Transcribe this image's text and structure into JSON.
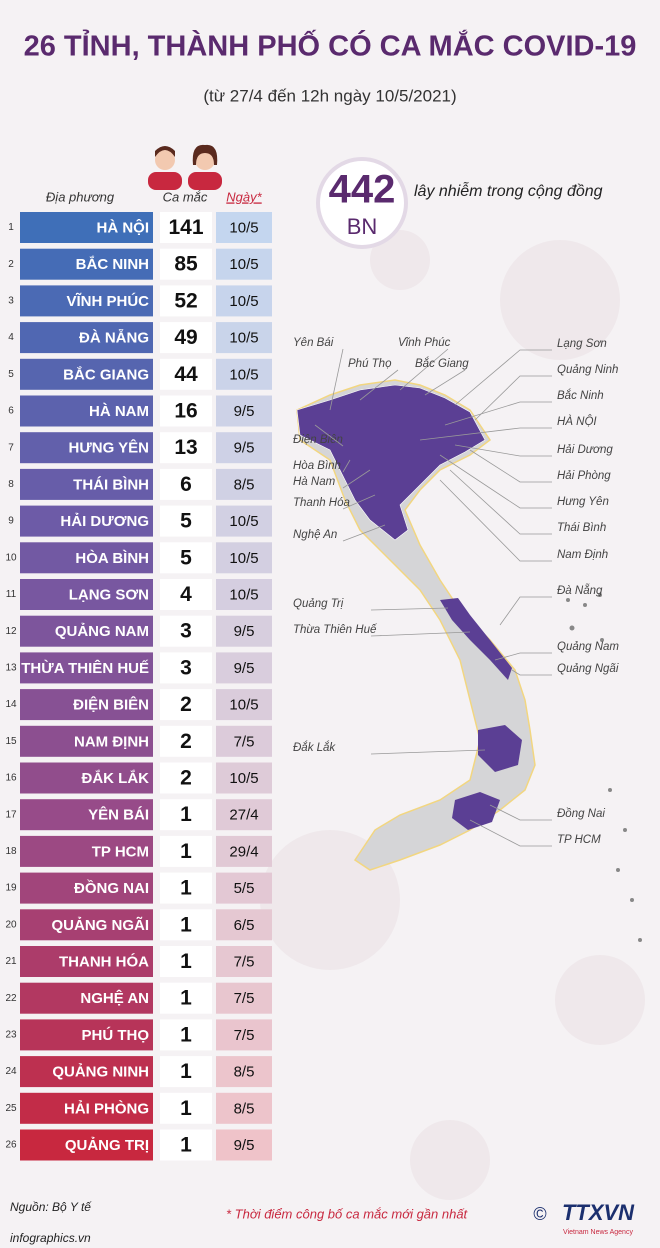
{
  "header": {
    "title": "26 TỈNH, THÀNH PHỐ CÓ CA MẮC COVID-19",
    "subtitle": "(từ 27/4 đến 12h ngày 10/5/2021)"
  },
  "table": {
    "columns": [
      "Địa phương",
      "Ca mắc",
      "Ngày*"
    ],
    "rows": [
      {
        "rank": 1,
        "province": "HÀ NỘI",
        "cases": 141,
        "date": "10/5"
      },
      {
        "rank": 2,
        "province": "BẮC NINH",
        "cases": 85,
        "date": "10/5"
      },
      {
        "rank": 3,
        "province": "VĨNH PHÚC",
        "cases": 52,
        "date": "10/5"
      },
      {
        "rank": 4,
        "province": "ĐÀ NẴNG",
        "cases": 49,
        "date": "10/5"
      },
      {
        "rank": 5,
        "province": "BẮC GIANG",
        "cases": 44,
        "date": "10/5"
      },
      {
        "rank": 6,
        "province": "HÀ NAM",
        "cases": 16,
        "date": "9/5"
      },
      {
        "rank": 7,
        "province": "HƯNG YÊN",
        "cases": 13,
        "date": "9/5"
      },
      {
        "rank": 8,
        "province": "THÁI BÌNH",
        "cases": 6,
        "date": "8/5"
      },
      {
        "rank": 9,
        "province": "HẢI DƯƠNG",
        "cases": 5,
        "date": "10/5"
      },
      {
        "rank": 10,
        "province": "HÒA BÌNH",
        "cases": 5,
        "date": "10/5"
      },
      {
        "rank": 11,
        "province": "LẠNG SƠN",
        "cases": 4,
        "date": "10/5"
      },
      {
        "rank": 12,
        "province": "QUẢNG NAM",
        "cases": 3,
        "date": "9/5"
      },
      {
        "rank": 13,
        "province": "THỪA THIÊN HUẾ",
        "cases": 3,
        "date": "9/5"
      },
      {
        "rank": 14,
        "province": "ĐIỆN BIÊN",
        "cases": 2,
        "date": "10/5"
      },
      {
        "rank": 15,
        "province": "NAM ĐỊNH",
        "cases": 2,
        "date": "7/5"
      },
      {
        "rank": 16,
        "province": "ĐẮK LẮK",
        "cases": 2,
        "date": "10/5"
      },
      {
        "rank": 17,
        "province": "YÊN BÁI",
        "cases": 1,
        "date": "27/4"
      },
      {
        "rank": 18,
        "province": "TP HCM",
        "cases": 1,
        "date": "29/4"
      },
      {
        "rank": 19,
        "province": "ĐỒNG NAI",
        "cases": 1,
        "date": "5/5"
      },
      {
        "rank": 20,
        "province": "QUẢNG NGÃI",
        "cases": 1,
        "date": "6/5"
      },
      {
        "rank": 21,
        "province": "THANH HÓA",
        "cases": 1,
        "date": "7/5"
      },
      {
        "rank": 22,
        "province": "NGHỆ AN",
        "cases": 1,
        "date": "7/5"
      },
      {
        "rank": 23,
        "province": "PHÚ THỌ",
        "cases": 1,
        "date": "7/5"
      },
      {
        "rank": 24,
        "province": "QUẢNG NINH",
        "cases": 1,
        "date": "8/5"
      },
      {
        "rank": 25,
        "province": "HẢI PHÒNG",
        "cases": 1,
        "date": "8/5"
      },
      {
        "rank": 26,
        "province": "QUẢNG TRỊ",
        "cases": 1,
        "date": "9/5"
      }
    ]
  },
  "summary": {
    "total": "442",
    "unit": "BN",
    "caption": "lây nhiễm trong cộng đồng"
  },
  "map": {
    "labels_left": [
      "Yên Bái",
      "Phú Thọ",
      "Vĩnh Phúc",
      "Bắc Giang",
      "Điện Biên",
      "Hòa Bình",
      "Hà Nam",
      "Thanh Hóa",
      "Nghệ An",
      "Quảng Trị",
      "Thừa Thiên Huế",
      "Đắk Lắk"
    ],
    "labels_right": [
      "Lạng Sơn",
      "Quảng Ninh",
      "Bắc Ninh",
      "HÀ NỘI",
      "Hải Dương",
      "Hải Phòng",
      "Hưng Yên",
      "Thái Bình",
      "Nam Định",
      "Đà Nẵng",
      "Quảng Nam",
      "Quảng Ngãi",
      "Đồng Nai",
      "TP HCM"
    ]
  },
  "footer": {
    "source": "Nguồn: Bộ Y tế",
    "note": "* Thời điểm công bố ca mắc mới gần nhất",
    "site": "infographics.vn",
    "copyright": "©",
    "logo": "TTXVN",
    "agency": "Vietnam News Agency"
  }
}
